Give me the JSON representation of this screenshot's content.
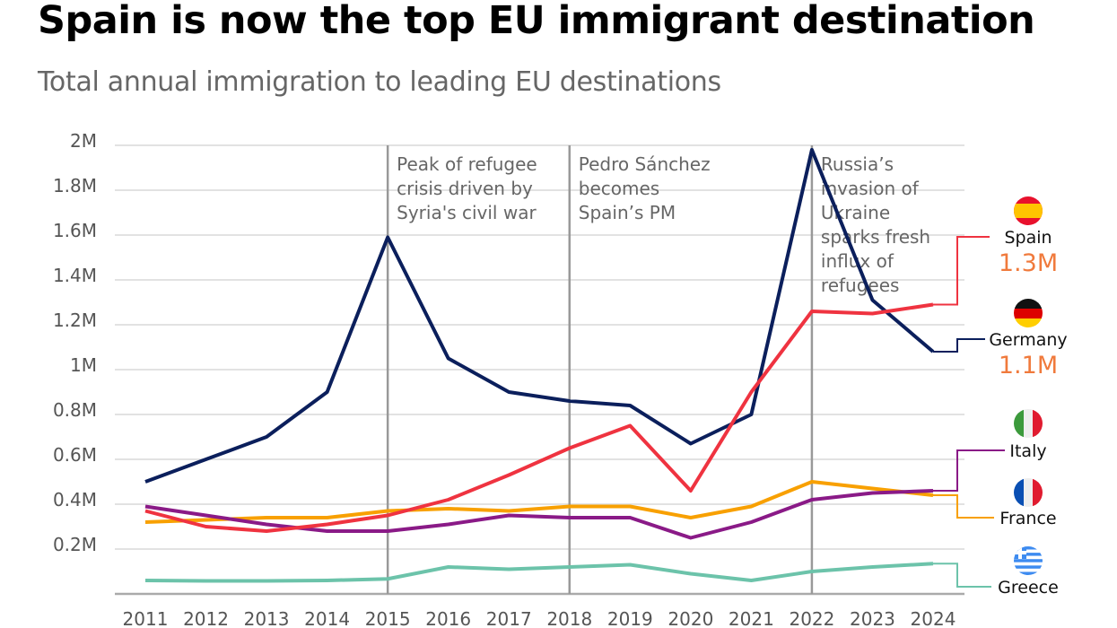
{
  "title": "Spain is now the top EU immigrant destination",
  "subtitle": "Total annual immigration to leading EU destinations",
  "chart_data": {
    "type": "line",
    "title": "Spain is now the top EU immigrant destination",
    "subtitle": "Total annual immigration to leading EU destinations",
    "x": [
      2011,
      2012,
      2013,
      2014,
      2015,
      2016,
      2017,
      2018,
      2019,
      2020,
      2021,
      2022,
      2023,
      2024
    ],
    "x_tick_labels": [
      "2011",
      "2012",
      "2013",
      "2014",
      "2015",
      "2016",
      "2017",
      "2018",
      "2019",
      "2020",
      "2021",
      "2022",
      "2023",
      "2024"
    ],
    "ylim": [
      0,
      2000000
    ],
    "y_ticks": [
      200000,
      400000,
      600000,
      800000,
      1000000,
      1200000,
      1400000,
      1600000,
      1800000,
      2000000
    ],
    "y_tick_labels": [
      "0.2M",
      "0.4M",
      "0.6M",
      "0.8M",
      "1M",
      "1.2M",
      "1.4M",
      "1.6M",
      "1.8M",
      "2M"
    ],
    "grid": true,
    "legend_placement": "right",
    "series": [
      {
        "name": "Spain",
        "color": "#ef3340",
        "flag": "spain-flag",
        "end_label": "1.3M",
        "values": [
          370000,
          300000,
          280000,
          310000,
          350000,
          420000,
          530000,
          650000,
          750000,
          460000,
          900000,
          1260000,
          1250000,
          1290000
        ]
      },
      {
        "name": "Germany",
        "color": "#0b1f5c",
        "flag": "germany-flag",
        "end_label": "1.1M",
        "values": [
          500000,
          600000,
          700000,
          900000,
          1590000,
          1050000,
          900000,
          860000,
          840000,
          670000,
          800000,
          1980000,
          1310000,
          1080000
        ]
      },
      {
        "name": "Italy",
        "color": "#8a1a87",
        "flag": "italy-flag",
        "values": [
          390000,
          350000,
          310000,
          280000,
          280000,
          310000,
          350000,
          340000,
          340000,
          250000,
          320000,
          420000,
          450000,
          460000
        ]
      },
      {
        "name": "France",
        "color": "#f8a000",
        "flag": "france-flag",
        "values": [
          320000,
          330000,
          340000,
          340000,
          370000,
          380000,
          370000,
          390000,
          390000,
          340000,
          390000,
          500000,
          470000,
          440000
        ]
      },
      {
        "name": "Greece",
        "color": "#6cc3aa",
        "flag": "greece-flag",
        "values": [
          60000,
          58000,
          58000,
          60000,
          67000,
          120000,
          110000,
          120000,
          130000,
          90000,
          60000,
          100000,
          120000,
          135000
        ]
      }
    ],
    "annotations": [
      {
        "x": 2015,
        "lines": [
          "Peak of refugee",
          "crisis driven by",
          "Syria's civil war"
        ]
      },
      {
        "x": 2018,
        "lines": [
          "Pedro Sánchez",
          "becomes",
          "Spain’s PM"
        ]
      },
      {
        "x": 2022,
        "lines": [
          "Russia’s",
          "invasion of",
          "Ukraine",
          "sparks fresh",
          "influx of",
          "refugees"
        ]
      }
    ]
  }
}
